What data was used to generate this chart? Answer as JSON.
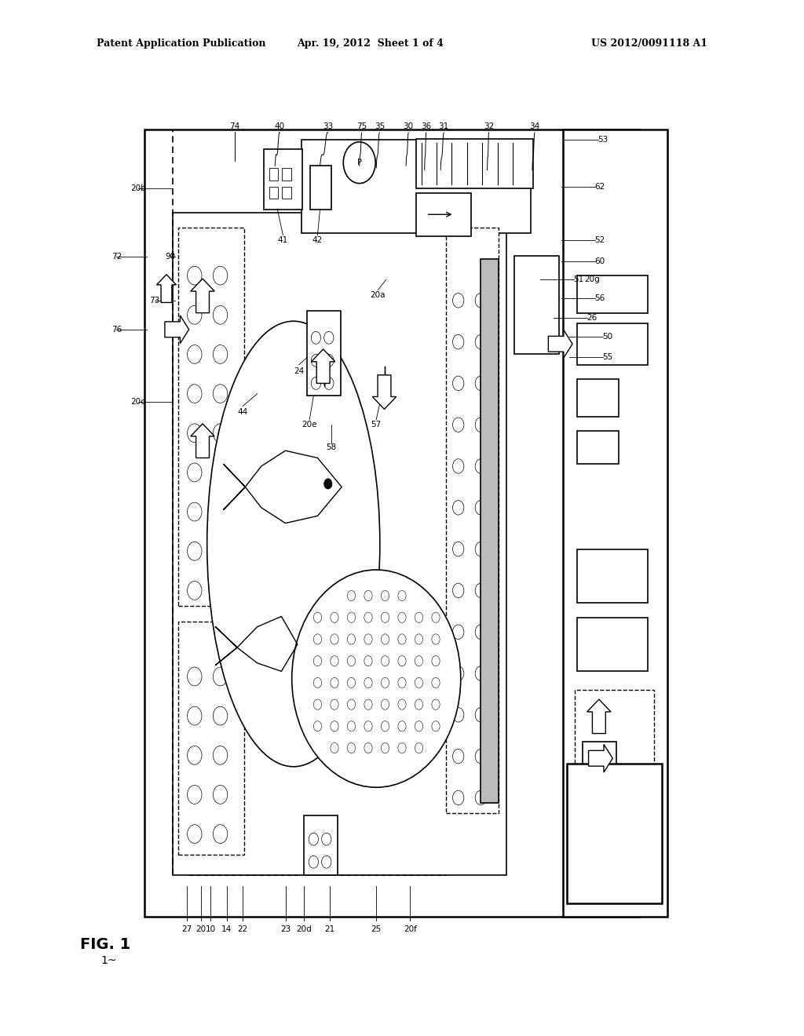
{
  "title_left": "Patent Application Publication",
  "title_mid": "Apr. 19, 2012  Sheet 1 of 4",
  "title_right": "US 2012/0091118 A1",
  "fig_label": "FIG. 1",
  "fig_num": "1",
  "background": "#ffffff",
  "line_color": "#000000"
}
